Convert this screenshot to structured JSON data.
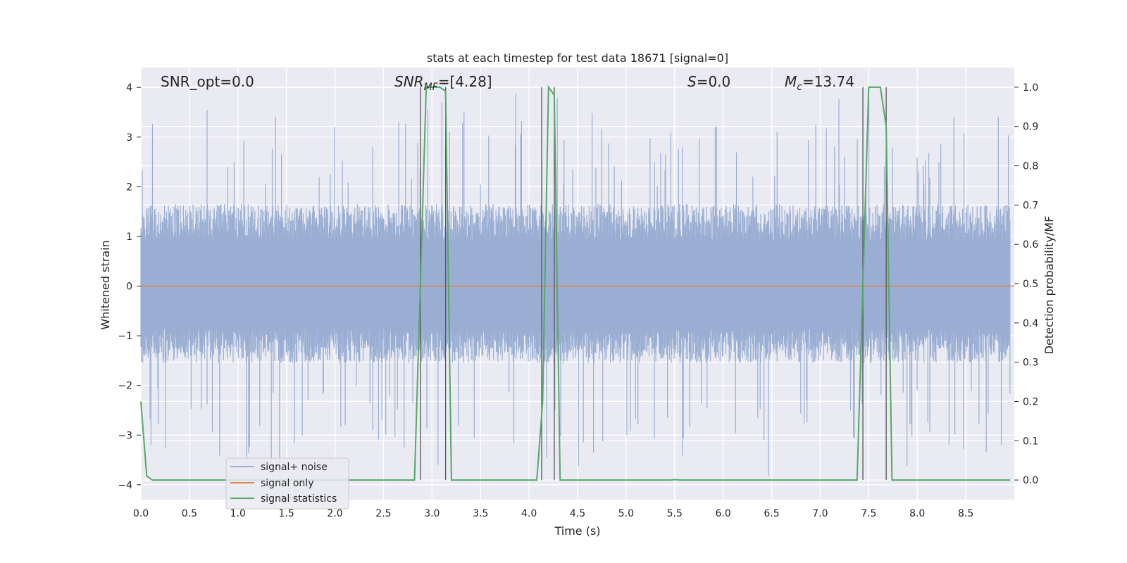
{
  "chart_data": {
    "type": "line",
    "title": "stats at each timestep for test data 18671 [signal=0]",
    "xlabel": "Time (s)",
    "ylabel": "Whitened strain",
    "y2label": "Detection probability/MF",
    "xlim": [
      0.0,
      9.0
    ],
    "ylim": [
      -4.3,
      4.4
    ],
    "y2lim": [
      -0.05,
      1.05
    ],
    "xticks": [
      "0.0",
      "0.5",
      "1.0",
      "1.5",
      "2.0",
      "2.5",
      "3.0",
      "3.5",
      "4.0",
      "4.5",
      "5.0",
      "5.5",
      "6.0",
      "6.5",
      "7.0",
      "7.5",
      "8.0",
      "8.5"
    ],
    "yticks": [
      "−4",
      "−3",
      "−2",
      "−1",
      "0",
      "1",
      "2",
      "3",
      "4"
    ],
    "y2ticks": [
      "0.0",
      "0.1",
      "0.2",
      "0.3",
      "0.4",
      "0.5",
      "0.6",
      "0.7",
      "0.8",
      "0.9",
      "1.0"
    ],
    "grid": true,
    "annotations": {
      "snr_opt": "SNR_opt=0.0",
      "snr_mf_main": "SNR",
      "snr_mf_sub": "MF",
      "snr_mf_val": "=[4.28]",
      "s_main": "S",
      "s_val": "=0.0",
      "mc_main": "M",
      "mc_sub": "c",
      "mc_val": "=13.74"
    },
    "legend": {
      "position": "lower-left",
      "entries": [
        "signal+ noise",
        "signal only",
        "signal statistics"
      ]
    },
    "series": [
      {
        "name": "signal+ noise",
        "color": "#99aed2",
        "kind": "noise",
        "envelope_upper": 1.65,
        "envelope_lower": -1.55,
        "spike_max": 3.9,
        "spike_min": -3.9
      },
      {
        "name": "signal only",
        "color": "#dd8452",
        "x": [
          0.0,
          9.0
        ],
        "y": [
          0.0,
          0.0
        ]
      },
      {
        "name": "signal statistics",
        "color": "#55a868",
        "axis": "right",
        "x": [
          0.0,
          0.06,
          0.12,
          2.82,
          2.88,
          2.94,
          3.08,
          3.14,
          3.2,
          4.08,
          4.14,
          4.2,
          4.26,
          4.32,
          5.46,
          5.5,
          5.56,
          7.38,
          7.44,
          7.5,
          7.62,
          7.68,
          7.74,
          8.96
        ],
        "y": [
          0.2,
          0.01,
          0.0,
          0.0,
          0.5,
          1.0,
          1.0,
          0.99,
          0.0,
          0.0,
          0.2,
          1.0,
          0.98,
          0.0,
          0.0,
          0.001,
          0.0,
          0.0,
          0.5,
          1.0,
          1.0,
          0.9,
          0.0,
          0.0
        ]
      }
    ],
    "vertical_lines": [
      2.88,
      3.14,
      4.13,
      4.26,
      7.44,
      7.68
    ]
  }
}
